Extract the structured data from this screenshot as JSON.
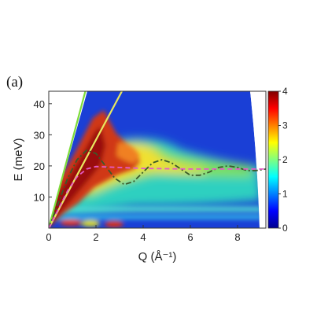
{
  "chart_data": {
    "type": "heatmap",
    "panel_label": "(a)",
    "xlabel": "Q (Å⁻¹)",
    "ylabel": "E (meV)",
    "xlim": [
      0,
      9.2
    ],
    "ylim": [
      0,
      44
    ],
    "x_ticks": [
      0,
      2,
      4,
      6,
      8
    ],
    "y_ticks": [
      10,
      20,
      30,
      40
    ],
    "colorbar": {
      "range": [
        0,
        4
      ],
      "ticks": [
        0,
        1,
        2,
        3,
        4
      ],
      "colormap": "jet"
    },
    "grid": false,
    "overlay_lines": [
      {
        "style": "solid",
        "color": "#7ddc3a",
        "points": [
          [
            0,
            0
          ],
          [
            1.55,
            44
          ]
        ]
      },
      {
        "style": "solid",
        "color": "#e8e860",
        "points": [
          [
            0,
            0
          ],
          [
            3.1,
            44
          ]
        ]
      },
      {
        "style": "dash-dot",
        "color": "#3a5a2a",
        "points": [
          [
            0,
            0
          ],
          [
            0.4,
            8
          ],
          [
            0.8,
            16
          ],
          [
            1.2,
            22
          ],
          [
            1.6,
            25
          ],
          [
            2.0,
            24
          ],
          [
            2.4,
            20
          ],
          [
            2.8,
            16
          ],
          [
            3.2,
            14
          ],
          [
            3.6,
            15
          ],
          [
            4.0,
            18
          ],
          [
            4.4,
            21
          ],
          [
            4.8,
            22
          ],
          [
            5.2,
            21
          ],
          [
            5.6,
            19
          ],
          [
            6.0,
            17
          ],
          [
            6.4,
            17
          ],
          [
            6.8,
            18
          ],
          [
            7.2,
            19.5
          ],
          [
            7.6,
            20
          ],
          [
            8.0,
            19.5
          ],
          [
            8.4,
            18.5
          ],
          [
            8.8,
            18.5
          ],
          [
            9.2,
            19
          ]
        ]
      },
      {
        "style": "dashed",
        "color": "#e65ac8",
        "points": [
          [
            0,
            0
          ],
          [
            0.4,
            6
          ],
          [
            0.8,
            12
          ],
          [
            1.2,
            16.5
          ],
          [
            1.6,
            19
          ],
          [
            2.0,
            19.8
          ],
          [
            3.0,
            19.5
          ],
          [
            4.0,
            19.2
          ],
          [
            5.0,
            19.1
          ],
          [
            6.0,
            19
          ],
          [
            7.0,
            19
          ],
          [
            8.0,
            19
          ],
          [
            9.2,
            19
          ]
        ]
      }
    ],
    "colors": {
      "background_low": "#1535c8",
      "mid": "#38d0c8",
      "high": "#d03018",
      "max": "#7a0a0a"
    }
  }
}
